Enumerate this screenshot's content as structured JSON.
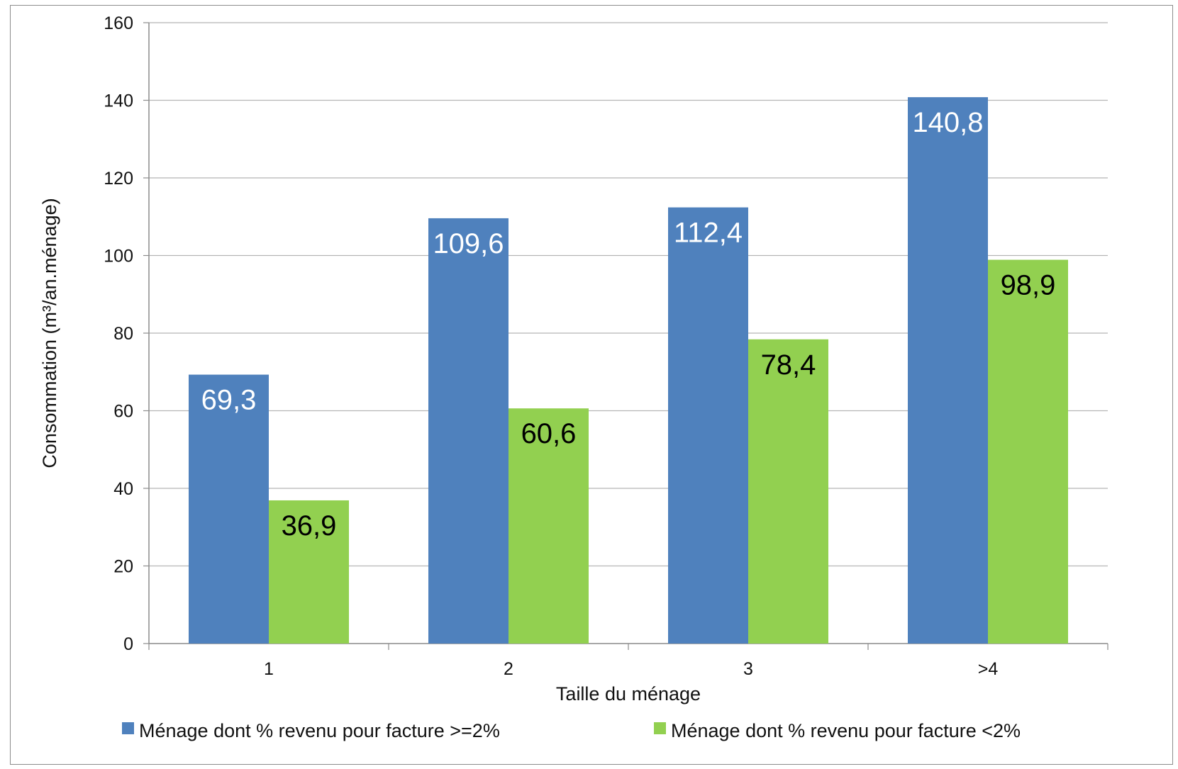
{
  "chart_data": {
    "type": "bar",
    "categories": [
      "1",
      "2",
      "3",
      ">4"
    ],
    "series": [
      {
        "name": "Ménage dont % revenu pour facture >=2%",
        "values": [
          69.3,
          109.6,
          112.4,
          140.8
        ],
        "labels": [
          "69,3",
          "109,6",
          "112,4",
          "140,8"
        ],
        "color": "#4f81bd",
        "label_color": "#ffffff"
      },
      {
        "name": "Ménage dont % revenu pour facture <2%",
        "values": [
          36.9,
          60.6,
          78.4,
          98.9
        ],
        "labels": [
          "36,9",
          "60,6",
          "78,4",
          "98,9"
        ],
        "color": "#92d050",
        "label_color": "#000000"
      }
    ],
    "xlabel": "Taille du ménage",
    "ylabel": "Consommation (m³/an.ménage)",
    "ylim": [
      0,
      160
    ],
    "yticks": [
      "0",
      "20",
      "40",
      "60",
      "80",
      "100",
      "120",
      "140",
      "160"
    ],
    "grid": true,
    "legend_position": "bottom"
  }
}
